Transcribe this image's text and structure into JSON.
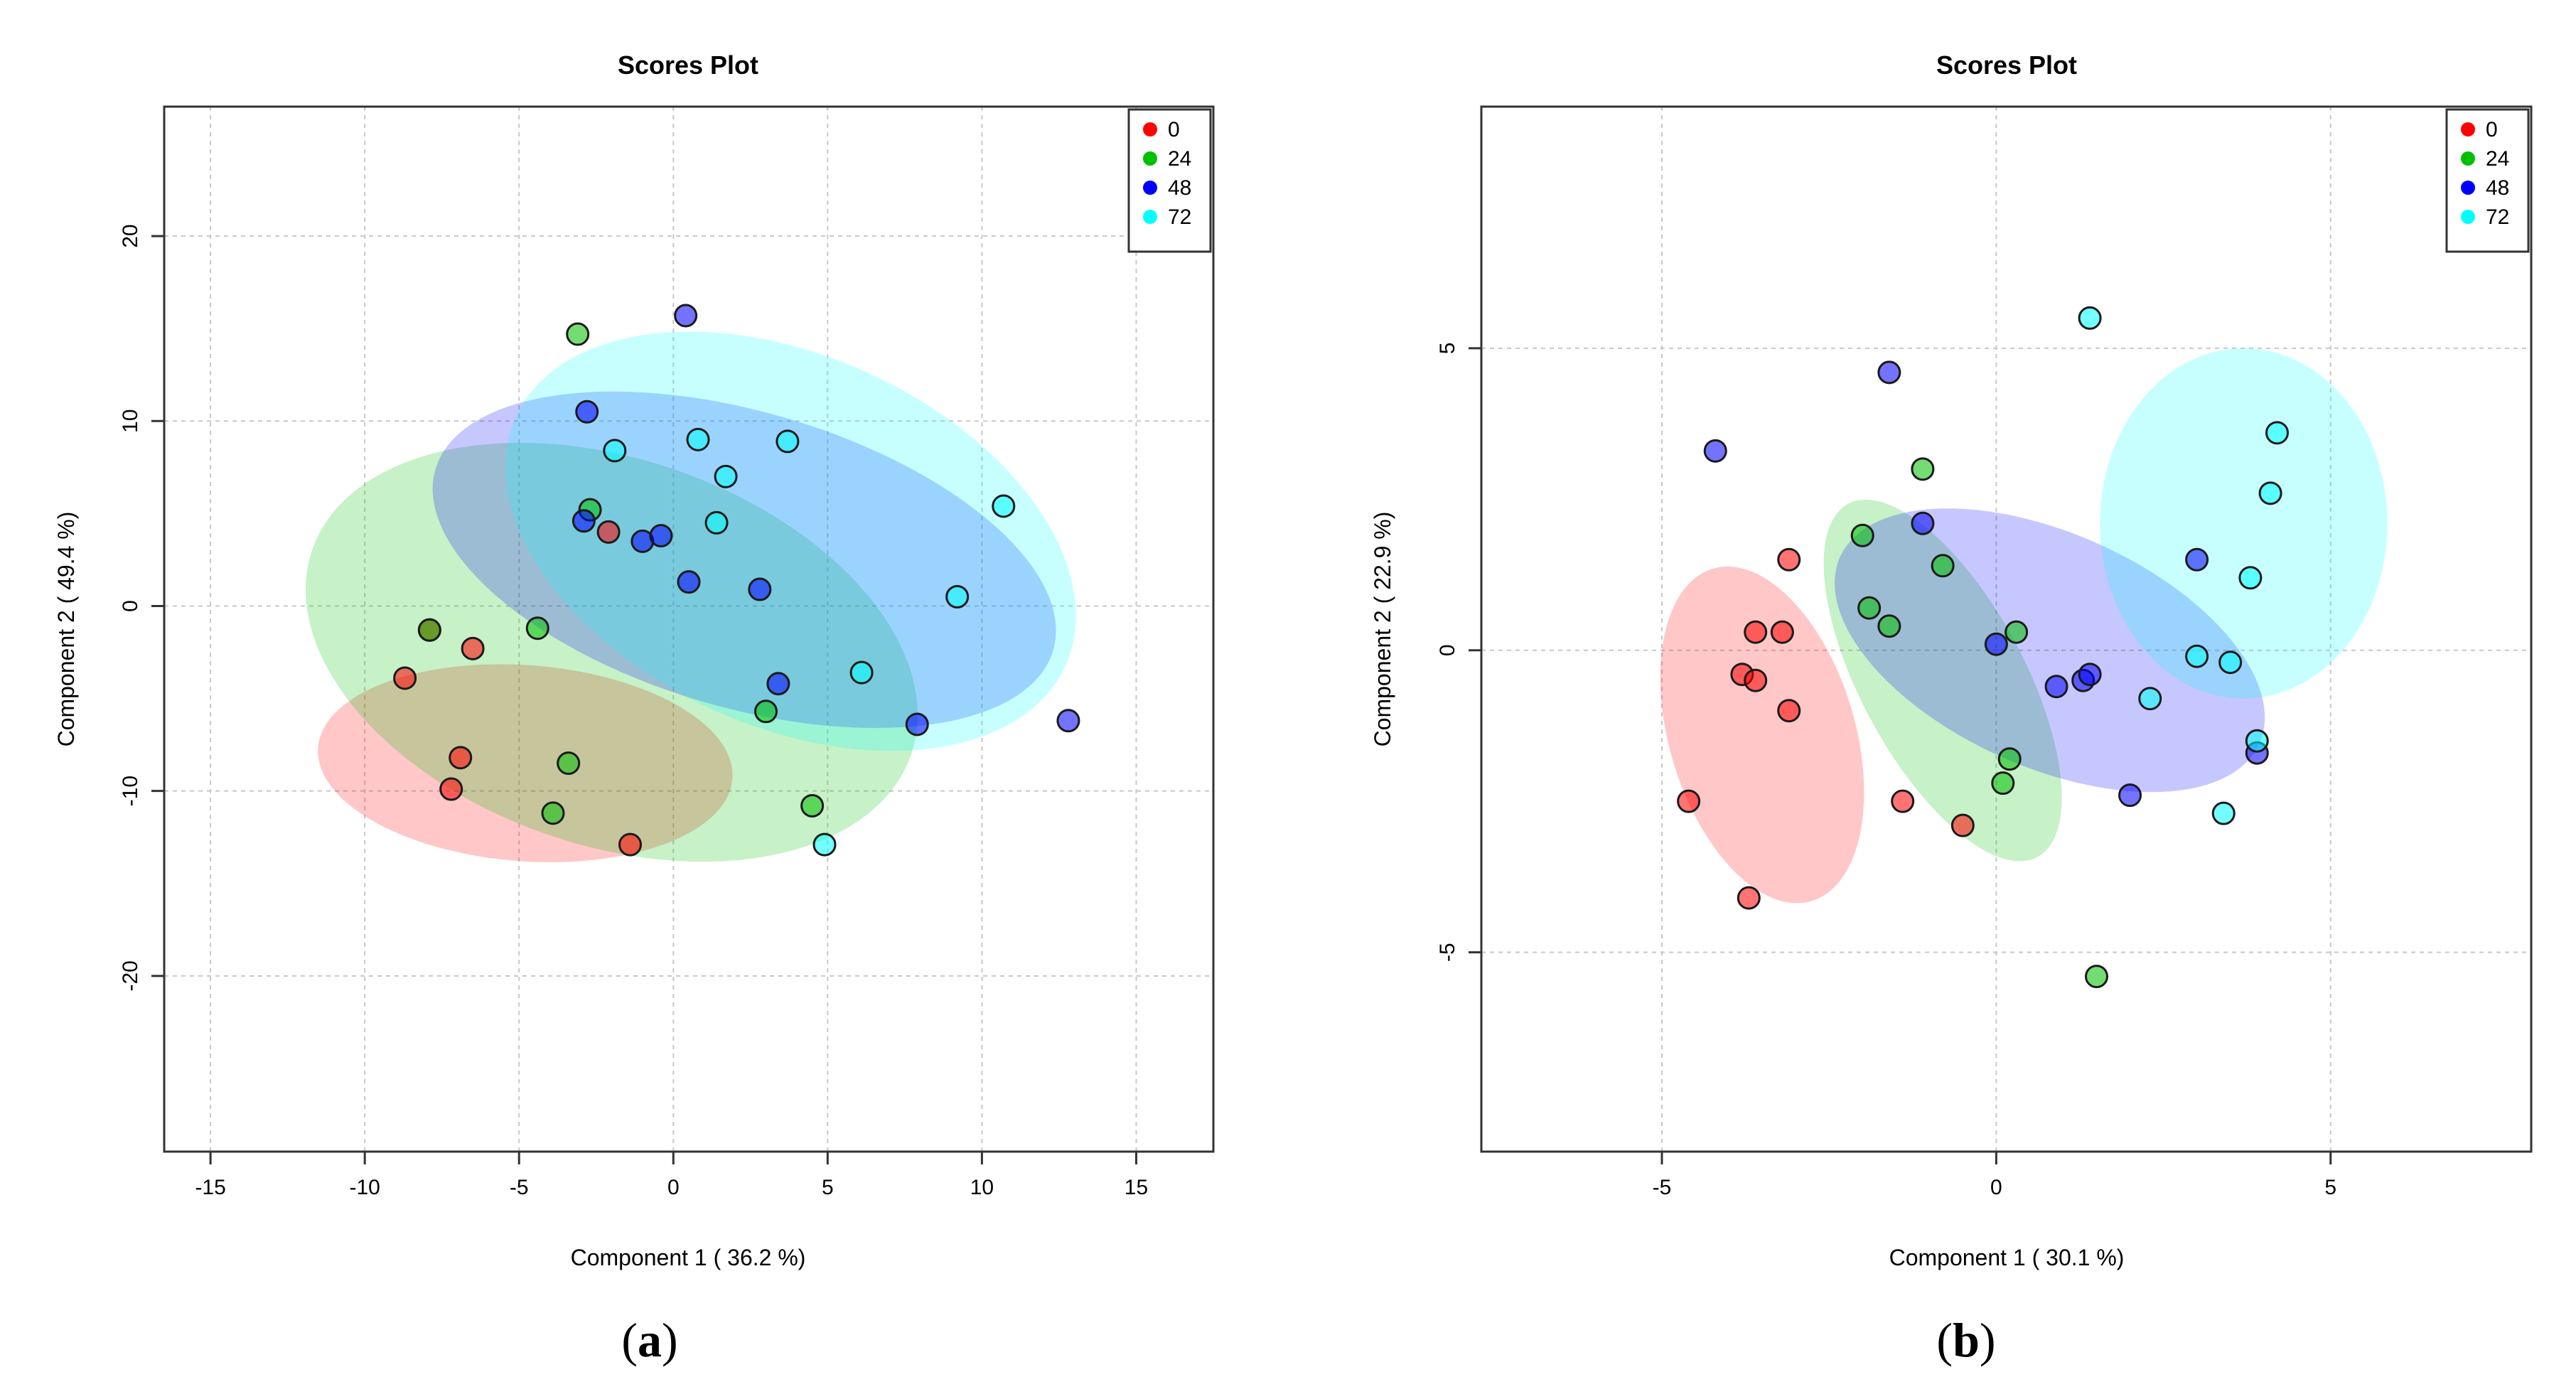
{
  "chart_data": [
    {
      "type": "scatter",
      "panel": "a",
      "title": "Scores Plot",
      "xlabel": "Component 1 ( 36.2 %)",
      "ylabel": "Component 2 ( 49.4 %)",
      "xlim": [
        -16.5,
        17.5
      ],
      "ylim": [
        -29.5,
        27
      ],
      "xticks": [
        -15,
        -10,
        -5,
        0,
        5,
        10,
        15
      ],
      "yticks": [
        -20,
        -10,
        0,
        10,
        20
      ],
      "legend": {
        "position": "top-right",
        "entries": [
          "0",
          "24",
          "48",
          "72"
        ]
      },
      "series": [
        {
          "name": "0",
          "color": "#ff0000",
          "ellipse": {
            "cx": -4.8,
            "cy": -8.5,
            "rx": 13.6,
            "ry": 10.5,
            "angle": -14
          },
          "points": [
            [
              -8.7,
              -3.9
            ],
            [
              -7.9,
              -1.3
            ],
            [
              -6.5,
              -2.3
            ],
            [
              -6.9,
              -8.2
            ],
            [
              -7.2,
              -9.9
            ],
            [
              -2.1,
              4.0
            ],
            [
              -1.4,
              -12.9
            ]
          ]
        },
        {
          "name": "24",
          "color": "#00c000",
          "ellipse": {
            "cx": -2.0,
            "cy": -2.5,
            "rx": 24.5,
            "ry": 17.5,
            "angle": -57
          },
          "points": [
            [
              -3.1,
              14.7
            ],
            [
              -2.7,
              5.2
            ],
            [
              -4.4,
              -1.2
            ],
            [
              -7.9,
              -1.3
            ],
            [
              -3.4,
              -8.5
            ],
            [
              -3.9,
              -11.2
            ],
            [
              3.0,
              -5.7
            ],
            [
              4.5,
              -10.8
            ]
          ]
        },
        {
          "name": "48",
          "color": "#0000ff",
          "ellipse": {
            "cx": 2.3,
            "cy": 2.5,
            "rx": 23,
            "ry": 14.5,
            "angle": -38
          },
          "points": [
            [
              0.4,
              15.7
            ],
            [
              -2.8,
              10.5
            ],
            [
              -2.9,
              4.6
            ],
            [
              -1.0,
              3.5
            ],
            [
              -0.4,
              3.8
            ],
            [
              0.5,
              1.3
            ],
            [
              2.8,
              0.9
            ],
            [
              3.4,
              -4.2
            ],
            [
              7.9,
              -6.4
            ],
            [
              12.8,
              -6.2
            ]
          ]
        },
        {
          "name": "72",
          "color": "#00ffff",
          "ellipse": {
            "cx": 3.8,
            "cy": 3.5,
            "rx": 24.5,
            "ry": 16,
            "angle": -60
          },
          "points": [
            [
              -1.9,
              8.4
            ],
            [
              0.8,
              9.0
            ],
            [
              1.7,
              7.0
            ],
            [
              1.4,
              4.5
            ],
            [
              3.7,
              8.9
            ],
            [
              10.7,
              5.4
            ],
            [
              9.2,
              0.5
            ],
            [
              6.1,
              -3.6
            ],
            [
              4.9,
              -12.9
            ]
          ]
        }
      ]
    },
    {
      "type": "scatter",
      "panel": "b",
      "title": "Scores Plot",
      "xlabel": "Component 1 ( 30.1 %)",
      "ylabel": "Component 2 ( 22.9 %)",
      "xlim": [
        -7.7,
        8.0
      ],
      "ylim": [
        -8.3,
        9.0
      ],
      "xticks": [
        -5,
        0,
        5
      ],
      "yticks": [
        -5,
        0,
        5
      ],
      "legend": {
        "position": "top-right",
        "entries": [
          "0",
          "24",
          "48",
          "72"
        ]
      },
      "series": [
        {
          "name": "0",
          "color": "#ff0000",
          "ellipse": {
            "cx": -3.5,
            "cy": -1.4,
            "rx": 5.7,
            "ry": 2.8,
            "angle": -76
          },
          "points": [
            [
              -3.1,
              1.5
            ],
            [
              -3.2,
              0.3
            ],
            [
              -3.6,
              0.3
            ],
            [
              -3.8,
              -0.4
            ],
            [
              -3.6,
              -0.5
            ],
            [
              -3.1,
              -1.0
            ],
            [
              -4.6,
              -2.5
            ],
            [
              -1.4,
              -2.5
            ],
            [
              -0.5,
              -2.9
            ],
            [
              -3.7,
              -4.1
            ]
          ]
        },
        {
          "name": "24",
          "color": "#00c000",
          "ellipse": {
            "cx": -0.8,
            "cy": -0.5,
            "rx": 6.5,
            "ry": 2.5,
            "angle": -65
          },
          "points": [
            [
              -1.1,
              3.0
            ],
            [
              -2.0,
              1.9
            ],
            [
              -0.8,
              1.4
            ],
            [
              -1.9,
              0.7
            ],
            [
              -1.6,
              0.4
            ],
            [
              0.3,
              0.3
            ],
            [
              0.2,
              -1.8
            ],
            [
              0.1,
              -2.2
            ],
            [
              1.5,
              -5.4
            ]
          ]
        },
        {
          "name": "48",
          "color": "#0000ff",
          "ellipse": {
            "cx": 0.8,
            "cy": 0.0,
            "rx": 7.0,
            "ry": 3.8,
            "angle": -28
          },
          "points": [
            [
              -1.6,
              4.6
            ],
            [
              -4.2,
              3.3
            ],
            [
              -1.1,
              2.1
            ],
            [
              0.0,
              0.1
            ],
            [
              0.9,
              -0.6
            ],
            [
              1.3,
              -0.5
            ],
            [
              1.4,
              -0.4
            ],
            [
              2.0,
              -2.4
            ],
            [
              3.0,
              1.5
            ],
            [
              3.9,
              -1.7
            ]
          ]
        },
        {
          "name": "72",
          "color": "#00ffff",
          "ellipse": {
            "cx": 3.7,
            "cy": 2.1,
            "rx": 5.8,
            "ry": 4.3,
            "angle": -90
          },
          "points": [
            [
              1.4,
              5.5
            ],
            [
              4.2,
              3.6
            ],
            [
              4.1,
              2.6
            ],
            [
              3.8,
              1.2
            ],
            [
              3.0,
              -0.1
            ],
            [
              3.5,
              -0.2
            ],
            [
              2.3,
              -0.8
            ],
            [
              3.9,
              -1.5
            ],
            [
              3.4,
              -2.7
            ]
          ]
        }
      ]
    }
  ],
  "panel_labels": [
    {
      "open": "(",
      "letter": "a",
      "close": ")"
    },
    {
      "open": "(",
      "letter": "b",
      "close": ")"
    }
  ]
}
